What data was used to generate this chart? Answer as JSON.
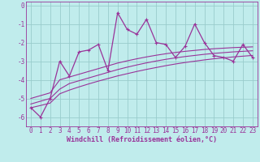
{
  "xlabel": "Windchill (Refroidissement éolien,°C)",
  "bg_color": "#c0ecec",
  "grid_color": "#99cccc",
  "line_color": "#993399",
  "spine_color": "#993399",
  "x_data": [
    0,
    1,
    2,
    3,
    4,
    5,
    6,
    7,
    8,
    9,
    10,
    11,
    12,
    13,
    14,
    15,
    16,
    17,
    18,
    19,
    20,
    21,
    22,
    23
  ],
  "y_jagged": [
    -5.5,
    -6.0,
    -5.0,
    -3.0,
    -3.8,
    -2.5,
    -2.4,
    -2.1,
    -3.5,
    -0.4,
    -1.3,
    -1.55,
    -0.75,
    -2.0,
    -2.1,
    -2.8,
    -2.2,
    -1.0,
    -2.0,
    -2.7,
    -2.8,
    -3.0,
    -2.1,
    -2.8
  ],
  "y_line_top": [
    -5.0,
    -4.85,
    -4.7,
    -4.0,
    -3.85,
    -3.7,
    -3.55,
    -3.4,
    -3.25,
    -3.1,
    -2.98,
    -2.87,
    -2.77,
    -2.68,
    -2.6,
    -2.53,
    -2.47,
    -2.42,
    -2.37,
    -2.33,
    -2.3,
    -2.27,
    -2.25,
    -2.23
  ],
  "y_line_mid": [
    -5.3,
    -5.15,
    -5.0,
    -4.5,
    -4.2,
    -4.05,
    -3.9,
    -3.75,
    -3.6,
    -3.45,
    -3.32,
    -3.2,
    -3.09,
    -2.99,
    -2.9,
    -2.82,
    -2.75,
    -2.69,
    -2.63,
    -2.58,
    -2.54,
    -2.5,
    -2.47,
    -2.44
  ],
  "y_line_bot": [
    -5.5,
    -5.38,
    -5.25,
    -4.75,
    -4.55,
    -4.38,
    -4.22,
    -4.07,
    -3.93,
    -3.79,
    -3.67,
    -3.55,
    -3.44,
    -3.34,
    -3.24,
    -3.15,
    -3.07,
    -3.0,
    -2.93,
    -2.87,
    -2.82,
    -2.77,
    -2.73,
    -2.69
  ],
  "ylim": [
    -6.5,
    0.2
  ],
  "xlim": [
    -0.5,
    23.5
  ],
  "yticks": [
    0,
    -1,
    -2,
    -3,
    -4,
    -5,
    -6
  ],
  "xticks": [
    0,
    1,
    2,
    3,
    4,
    5,
    6,
    7,
    8,
    9,
    10,
    11,
    12,
    13,
    14,
    15,
    16,
    17,
    18,
    19,
    20,
    21,
    22,
    23
  ],
  "tick_fontsize": 5.5,
  "xlabel_fontsize": 6.0
}
